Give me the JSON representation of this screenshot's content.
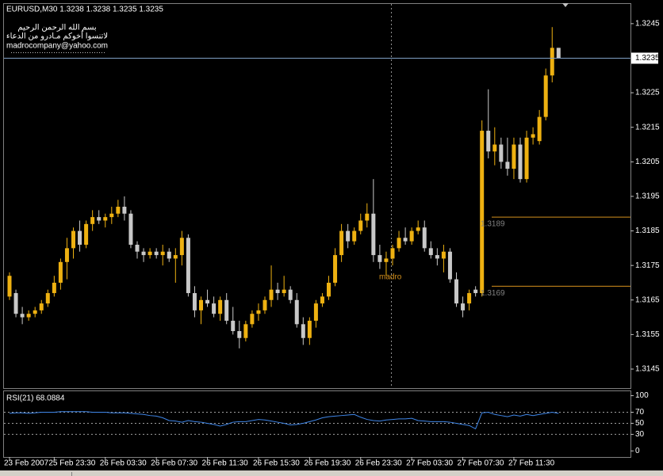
{
  "chart_data": [
    {
      "type": "candlestick",
      "title": "EURUSD,M30  1.3238 1.3238 1.3235 1.3235",
      "annotations": [
        "بسم الله الرحمن الرحيم",
        "لاتنسوا أخوكم مـادرو من الدعاء",
        "madrocompany@yahoo.com",
        "madro"
      ],
      "categories": [
        "23 Feb 2007",
        null,
        null,
        null,
        null,
        null,
        null,
        "25 Feb 23:30",
        null,
        null,
        null,
        null,
        null,
        null,
        null,
        "26 Feb 03:30",
        null,
        null,
        null,
        null,
        null,
        null,
        null,
        "26 Feb 07:30",
        null,
        null,
        null,
        null,
        null,
        null,
        null,
        "26 Feb 11:30",
        null,
        null,
        null,
        null,
        null,
        null,
        null,
        "26 Feb 15:30",
        null,
        null,
        null,
        null,
        null,
        null,
        null,
        "26 Feb 19:30",
        null,
        null,
        null,
        null,
        null,
        null,
        null,
        "26 Feb 23:30",
        null,
        null,
        null,
        null,
        null,
        null,
        null,
        "27 Feb 03:30",
        null,
        null,
        null,
        null,
        null,
        null,
        null,
        "27 Feb 07:30",
        null,
        null,
        null,
        null,
        null,
        null,
        null,
        "27 Feb 11:30",
        null,
        null,
        null,
        null,
        null,
        null,
        null
      ],
      "open": [
        1.3166,
        1.3167,
        1.3161,
        1.316,
        1.3161,
        1.3162,
        1.3164,
        1.3167,
        1.317,
        1.3176,
        1.318,
        1.3185,
        1.3181,
        1.3187,
        1.3189,
        1.3188,
        1.3189,
        1.319,
        1.3192,
        1.319,
        1.3181,
        1.3179,
        1.3178,
        1.3179,
        1.3178,
        1.3179,
        1.3177,
        1.3178,
        1.3183,
        1.3167,
        1.3162,
        1.3165,
        1.3164,
        1.3161,
        1.3165,
        1.3159,
        1.3156,
        1.3154,
        1.3158,
        1.3161,
        1.3162,
        1.3165,
        1.3168,
        1.3167,
        1.3168,
        1.3165,
        1.3158,
        1.3154,
        1.3159,
        1.3164,
        1.3166,
        1.317,
        1.3178,
        1.3185,
        1.3182,
        1.3185,
        1.3188,
        1.319,
        1.3178,
        1.3176,
        1.3177,
        1.318,
        1.3183,
        1.3182,
        1.3185,
        1.3186,
        1.318,
        1.3178,
        1.3177,
        1.3179,
        1.3171,
        1.3164,
        1.3164,
        1.3168,
        1.3167,
        1.3214,
        1.3208,
        1.321,
        1.3205,
        1.3203,
        1.321,
        1.32,
        1.3212,
        1.3211,
        1.3218,
        1.323,
        1.3238
      ],
      "high": [
        1.3173,
        1.3168,
        1.3163,
        1.3162,
        1.3163,
        1.3165,
        1.3168,
        1.3172,
        1.3177,
        1.3183,
        1.3186,
        1.3188,
        1.3188,
        1.3191,
        1.3191,
        1.319,
        1.3192,
        1.3194,
        1.3195,
        1.3191,
        1.3182,
        1.318,
        1.318,
        1.318,
        1.3181,
        1.318,
        1.318,
        1.3185,
        1.3184,
        1.3169,
        1.3166,
        1.3168,
        1.3166,
        1.3166,
        1.3167,
        1.3163,
        1.3159,
        1.3159,
        1.3162,
        1.3164,
        1.3166,
        1.3175,
        1.317,
        1.3172,
        1.3169,
        1.3167,
        1.316,
        1.316,
        1.3165,
        1.3167,
        1.3172,
        1.318,
        1.3187,
        1.3187,
        1.3186,
        1.319,
        1.3193,
        1.32,
        1.3181,
        1.3179,
        1.3181,
        1.3185,
        1.3186,
        1.3186,
        1.3188,
        1.3188,
        1.3182,
        1.318,
        1.3181,
        1.318,
        1.3173,
        1.3166,
        1.3168,
        1.3169,
        1.3217,
        1.3226,
        1.3215,
        1.3212,
        1.3212,
        1.3212,
        1.3212,
        1.3214,
        1.3215,
        1.322,
        1.3232,
        1.3244,
        1.3238
      ],
      "low": [
        1.3165,
        1.316,
        1.3158,
        1.3159,
        1.316,
        1.3161,
        1.3163,
        1.3166,
        1.3168,
        1.3171,
        1.3177,
        1.3179,
        1.318,
        1.3185,
        1.3187,
        1.3186,
        1.3187,
        1.3189,
        1.3188,
        1.318,
        1.3177,
        1.3176,
        1.3177,
        1.3177,
        1.3175,
        1.3176,
        1.317,
        1.3175,
        1.3166,
        1.316,
        1.3158,
        1.3163,
        1.316,
        1.3159,
        1.3158,
        1.3155,
        1.3151,
        1.3153,
        1.3157,
        1.3159,
        1.3161,
        1.3163,
        1.3165,
        1.3166,
        1.3164,
        1.3157,
        1.3152,
        1.3152,
        1.3157,
        1.3163,
        1.3165,
        1.3169,
        1.3176,
        1.318,
        1.3181,
        1.3184,
        1.3186,
        1.3176,
        1.3174,
        1.3172,
        1.3175,
        1.3179,
        1.3181,
        1.3181,
        1.3184,
        1.3179,
        1.3177,
        1.3175,
        1.3173,
        1.317,
        1.3163,
        1.316,
        1.3162,
        1.3166,
        1.3166,
        1.3206,
        1.3204,
        1.3203,
        1.3201,
        1.32,
        1.3199,
        1.3199,
        1.321,
        1.321,
        1.3217,
        1.3228,
        1.3235
      ],
      "close": [
        1.3172,
        1.3161,
        1.316,
        1.3161,
        1.3162,
        1.3164,
        1.3167,
        1.317,
        1.3176,
        1.318,
        1.3185,
        1.3181,
        1.3187,
        1.3189,
        1.3188,
        1.3189,
        1.319,
        1.3192,
        1.319,
        1.3181,
        1.3179,
        1.3178,
        1.3179,
        1.3178,
        1.3179,
        1.3177,
        1.3178,
        1.3183,
        1.3167,
        1.3162,
        1.3165,
        1.3164,
        1.3161,
        1.3165,
        1.3159,
        1.3156,
        1.3154,
        1.3158,
        1.3161,
        1.3162,
        1.3165,
        1.3168,
        1.3167,
        1.3168,
        1.3165,
        1.3158,
        1.3154,
        1.3159,
        1.3164,
        1.3166,
        1.317,
        1.3178,
        1.3185,
        1.3182,
        1.3185,
        1.3188,
        1.319,
        1.3178,
        1.3176,
        1.3177,
        1.318,
        1.3183,
        1.3182,
        1.3185,
        1.3186,
        1.318,
        1.3178,
        1.3177,
        1.3179,
        1.3171,
        1.3164,
        1.3162,
        1.3167,
        1.3167,
        1.3214,
        1.3208,
        1.321,
        1.3205,
        1.3203,
        1.321,
        1.32,
        1.3212,
        1.3213,
        1.3218,
        1.323,
        1.3238,
        1.3235
      ],
      "up_color": "#eeb111",
      "down_color": "#c8c8c8",
      "ylim": [
        1.31395,
        1.32507
      ],
      "yticks": [
        1.3145,
        1.3155,
        1.3165,
        1.3175,
        1.3185,
        1.3195,
        1.3205,
        1.3215,
        1.3225,
        1.3245
      ],
      "current_price": 1.3235,
      "current_color": "#7f9fc4",
      "levels": [
        1.3189,
        1.3169
      ],
      "level_color": "#d4901c",
      "grid": false
    },
    {
      "type": "line",
      "title": "RSI(21) 68.0884",
      "values": [
        68,
        69,
        69,
        68,
        69,
        70,
        70,
        70,
        71,
        71,
        71,
        71,
        71,
        70,
        70,
        70,
        69,
        69,
        69,
        68,
        67,
        66,
        64,
        63,
        60,
        55,
        54,
        52,
        55,
        53,
        52,
        50,
        48,
        45,
        48,
        52,
        53,
        53,
        55,
        57,
        56,
        54,
        52,
        50,
        47,
        48,
        50,
        53,
        56,
        60,
        62,
        63,
        64,
        65,
        66,
        61,
        57,
        55,
        54,
        56,
        57,
        58,
        58,
        59,
        55,
        54,
        53,
        53,
        53,
        52,
        50,
        48,
        46,
        40,
        69,
        70,
        66,
        64,
        62,
        65,
        63,
        66,
        64,
        66,
        68,
        70,
        68.0884
      ],
      "color": "#3f86e8",
      "ylim": [
        -11,
        108
      ],
      "yticks": [
        0,
        30,
        50,
        70,
        100
      ],
      "levels": [
        30,
        50,
        70
      ],
      "grid": false
    }
  ]
}
